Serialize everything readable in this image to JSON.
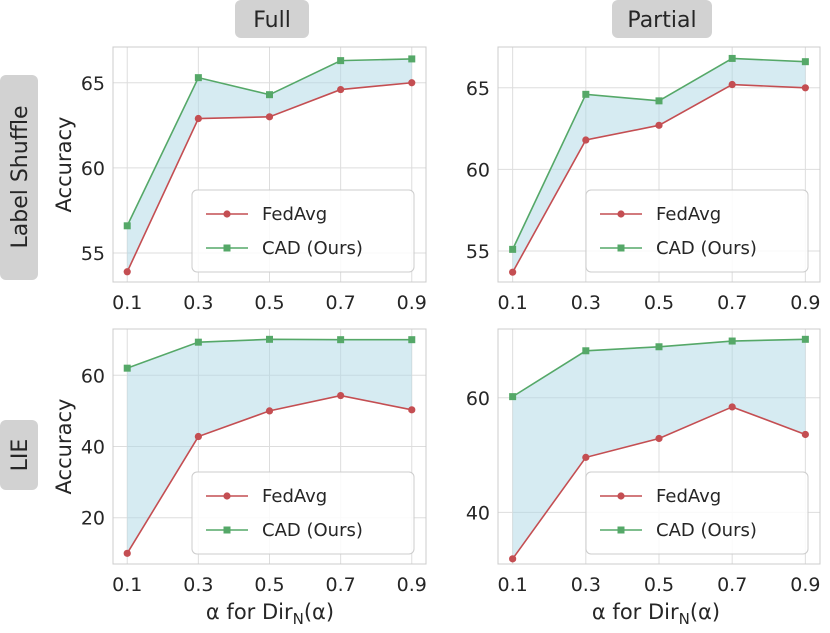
{
  "colors": {
    "fedavg": "#c44e52",
    "cad": "#55a868",
    "fill": "#add8e6",
    "panel_bg": "#ffffff",
    "grid": "#dddddd",
    "spine": "#cccccc",
    "header_bg": "#d2d2d2"
  },
  "figure": {
    "column_headers": [
      "Full",
      "Partial"
    ],
    "row_headers": [
      "Label Shuffle",
      "LIE"
    ],
    "shared_xlabel_prefix": "α for Dir",
    "shared_xlabel_sub": "N",
    "shared_xlabel_suffix": "(α)"
  },
  "chart_data": [
    {
      "type": "line",
      "title": "Full",
      "row": "Label Shuffle",
      "xlabel": "",
      "ylabel": "Accuracy",
      "categories": [
        "0.1",
        "0.3",
        "0.5",
        "0.7",
        "0.9"
      ],
      "x": [
        0.1,
        0.3,
        0.5,
        0.7,
        0.9
      ],
      "xlim": [
        0.06,
        0.94
      ],
      "ylim": [
        53.3,
        67.1
      ],
      "yticks": [
        55,
        60,
        65
      ],
      "series": [
        {
          "name": "FedAvg",
          "values": [
            53.9,
            62.9,
            63.0,
            64.6,
            65.0
          ],
          "marker": "circle"
        },
        {
          "name": "CAD (Ours)",
          "values": [
            56.6,
            65.3,
            64.3,
            66.3,
            66.4
          ],
          "marker": "square"
        }
      ],
      "legend": "bottom-right",
      "fill_between": true,
      "grid": true
    },
    {
      "type": "line",
      "title": "Partial",
      "row": "Label Shuffle",
      "xlabel": "",
      "ylabel": "",
      "categories": [
        "0.1",
        "0.3",
        "0.5",
        "0.7",
        "0.9"
      ],
      "x": [
        0.1,
        0.3,
        0.5,
        0.7,
        0.9
      ],
      "xlim": [
        0.06,
        0.94
      ],
      "ylim": [
        53.1,
        67.5
      ],
      "yticks": [
        55,
        60,
        65
      ],
      "series": [
        {
          "name": "FedAvg",
          "values": [
            53.7,
            61.8,
            62.7,
            65.2,
            65.0
          ],
          "marker": "circle"
        },
        {
          "name": "CAD (Ours)",
          "values": [
            55.1,
            64.6,
            64.2,
            66.8,
            66.6
          ],
          "marker": "square"
        }
      ],
      "legend": "bottom-right",
      "fill_between": true,
      "grid": true
    },
    {
      "type": "line",
      "title": "",
      "row": "LIE",
      "xlabel": "α for DirN(α)",
      "ylabel": "Accuracy",
      "categories": [
        "0.1",
        "0.3",
        "0.5",
        "0.7",
        "0.9"
      ],
      "x": [
        0.1,
        0.3,
        0.5,
        0.7,
        0.9
      ],
      "xlim": [
        0.06,
        0.94
      ],
      "ylim": [
        7,
        73
      ],
      "yticks": [
        20,
        40,
        60
      ],
      "series": [
        {
          "name": "FedAvg",
          "values": [
            10,
            42.8,
            50,
            54.3,
            50.3
          ],
          "marker": "circle"
        },
        {
          "name": "CAD (Ours)",
          "values": [
            62,
            69.3,
            70.1,
            70,
            70
          ],
          "marker": "square"
        }
      ],
      "legend": "bottom-right",
      "fill_between": true,
      "grid": true
    },
    {
      "type": "line",
      "title": "",
      "row": "LIE",
      "xlabel": "α for DirN(α)",
      "ylabel": "",
      "categories": [
        "0.1",
        "0.3",
        "0.5",
        "0.7",
        "0.9"
      ],
      "x": [
        0.1,
        0.3,
        0.5,
        0.7,
        0.9
      ],
      "xlim": [
        0.06,
        0.94
      ],
      "ylim": [
        31,
        72
      ],
      "yticks": [
        40,
        60
      ],
      "series": [
        {
          "name": "FedAvg",
          "values": [
            31.9,
            49.6,
            52.9,
            58.4,
            53.6
          ],
          "marker": "circle"
        },
        {
          "name": "CAD (Ours)",
          "values": [
            60.2,
            68.2,
            68.9,
            69.9,
            70.2
          ],
          "marker": "square"
        }
      ],
      "legend": "bottom-right",
      "fill_between": true,
      "grid": true
    }
  ]
}
